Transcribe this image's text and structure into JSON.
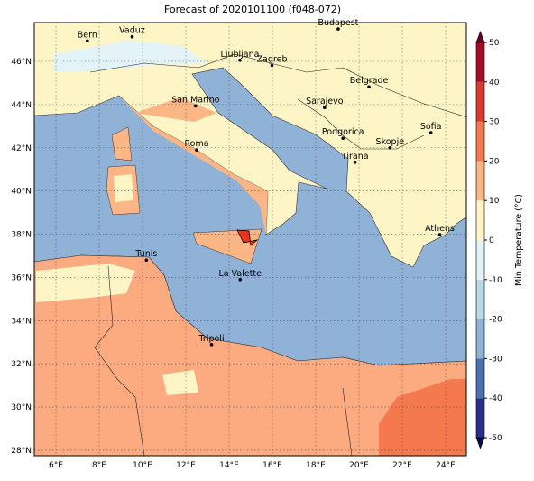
{
  "map": {
    "title": "Forecast of 2020101100 (f048-072)",
    "xticks": [
      {
        "value": 6,
        "label": "6°E"
      },
      {
        "value": 8,
        "label": "8°E"
      },
      {
        "value": 10,
        "label": "10°E"
      },
      {
        "value": 12,
        "label": "12°E"
      },
      {
        "value": 14,
        "label": "14°E"
      },
      {
        "value": 16,
        "label": "16°E"
      },
      {
        "value": 18,
        "label": "18°E"
      },
      {
        "value": 20,
        "label": "20°E"
      },
      {
        "value": 22,
        "label": "22°E"
      },
      {
        "value": 24,
        "label": "24°E"
      }
    ],
    "yticks": [
      {
        "value": 28,
        "label": "28°N"
      },
      {
        "value": 30,
        "label": "30°N"
      },
      {
        "value": 32,
        "label": "32°N"
      },
      {
        "value": 34,
        "label": "34°N"
      },
      {
        "value": 36,
        "label": "36°N"
      },
      {
        "value": 38,
        "label": "38°N"
      },
      {
        "value": 40,
        "label": "40°N"
      },
      {
        "value": 42,
        "label": "42°N"
      },
      {
        "value": 44,
        "label": "44°N"
      },
      {
        "value": 46,
        "label": "46°N"
      }
    ],
    "cities": [
      "Bern",
      "Vaduz",
      "Budapest",
      "Ljubljana",
      "Zagreb",
      "Belgrade",
      "Sarajevo",
      "San Marino",
      "Sofia",
      "Podgorica",
      "Skopje",
      "Roma",
      "Tirana",
      "Athens",
      "Tunis",
      "La Valette",
      "Tripoli"
    ],
    "colorbar": {
      "label": "Min Temperature (°C)",
      "ticks": [
        -50,
        -40,
        -30,
        -20,
        -10,
        0,
        10,
        20,
        30,
        40,
        50
      ],
      "colors": [
        "#2a2e8c",
        "#4a70b0",
        "#8fb2d6",
        "#b8d9e8",
        "#e4f3f7",
        "#fdf5c6",
        "#fcb585",
        "#f4794e",
        "#d83a2e",
        "#a50d26"
      ],
      "under_color": "#0b0b55",
      "over_color": "#6d0021"
    }
  }
}
